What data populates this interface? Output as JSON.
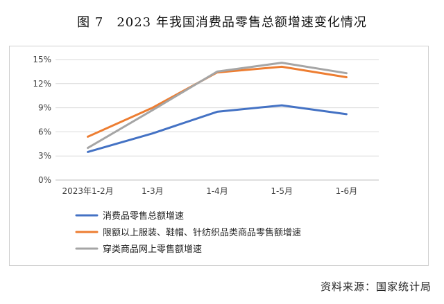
{
  "chart_data": {
    "type": "line",
    "title": "图 7　2023 年我国消费品零售总额增速变化情况",
    "categories": [
      "2023年1-2月",
      "1-3月",
      "1-4月",
      "1-5月",
      "1-6月"
    ],
    "series": [
      {
        "name": "消费品零售总额增速",
        "values": [
          3.5,
          5.8,
          8.5,
          9.3,
          8.2
        ],
        "color": "#4472C4"
      },
      {
        "name": "限额以上服装、鞋帽、针纺织品类商品零售额增速",
        "values": [
          5.4,
          9.0,
          13.4,
          14.1,
          12.8
        ],
        "color": "#ED7D31"
      },
      {
        "name": "穿类商品网上零售额增速",
        "values": [
          4.0,
          8.7,
          13.5,
          14.6,
          13.3
        ],
        "color": "#A5A5A5"
      }
    ],
    "y_ticks": [
      "0%",
      "3%",
      "6%",
      "9%",
      "12%",
      "15%"
    ],
    "ylim": [
      0,
      15
    ],
    "grid": true,
    "legend_position": "bottom-left",
    "source": "资料来源：国家统计局"
  }
}
